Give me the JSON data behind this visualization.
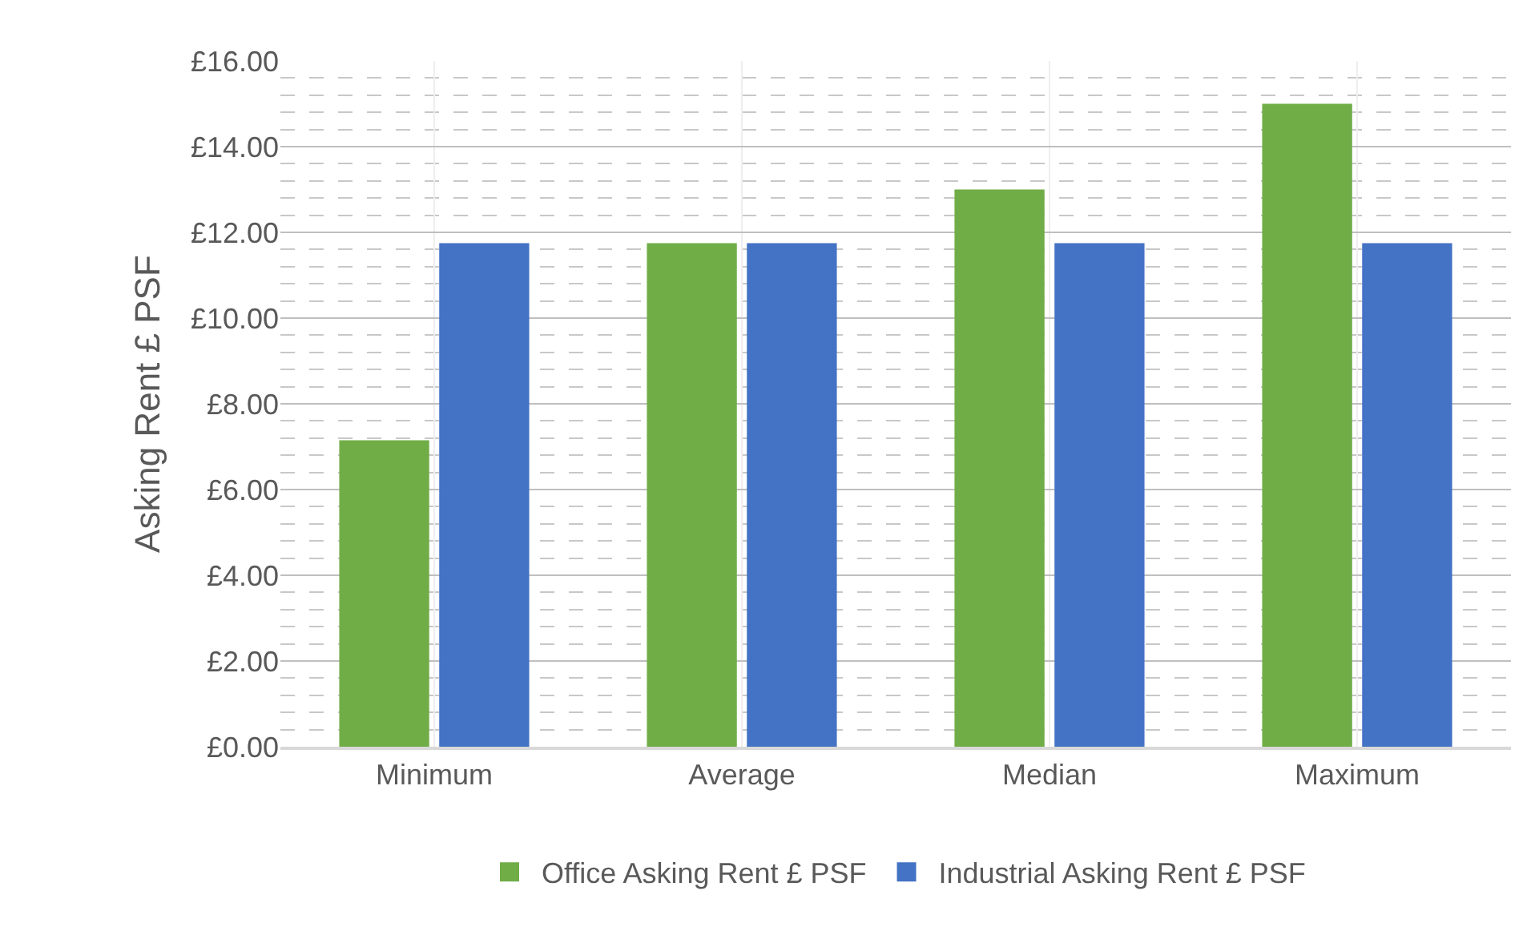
{
  "chart_data": {
    "type": "bar",
    "ylabel": "Asking Rent £ PSF",
    "categories": [
      "Minimum",
      "Average",
      "Median",
      "Maximum"
    ],
    "series": [
      {
        "name": "Office Asking Rent £ PSF",
        "color": "#70ad47",
        "values": [
          7.15,
          11.75,
          13.0,
          15.0
        ]
      },
      {
        "name": "Industrial Asking Rent £ PSF",
        "color": "#4472c4",
        "values": [
          11.75,
          11.75,
          11.75,
          11.75
        ]
      }
    ],
    "ylim": [
      0,
      16
    ],
    "yticks": [
      {
        "value": 0,
        "label": "£0.00"
      },
      {
        "value": 2,
        "label": "£2.00"
      },
      {
        "value": 4,
        "label": "£4.00"
      },
      {
        "value": 6,
        "label": "£6.00"
      },
      {
        "value": 8,
        "label": "£8.00"
      },
      {
        "value": 10,
        "label": "£10.00"
      },
      {
        "value": 12,
        "label": "£12.00"
      },
      {
        "value": 14,
        "label": "£14.00"
      },
      {
        "value": 16,
        "label": "£16.00"
      }
    ],
    "grid": true,
    "legend": "bottom"
  }
}
